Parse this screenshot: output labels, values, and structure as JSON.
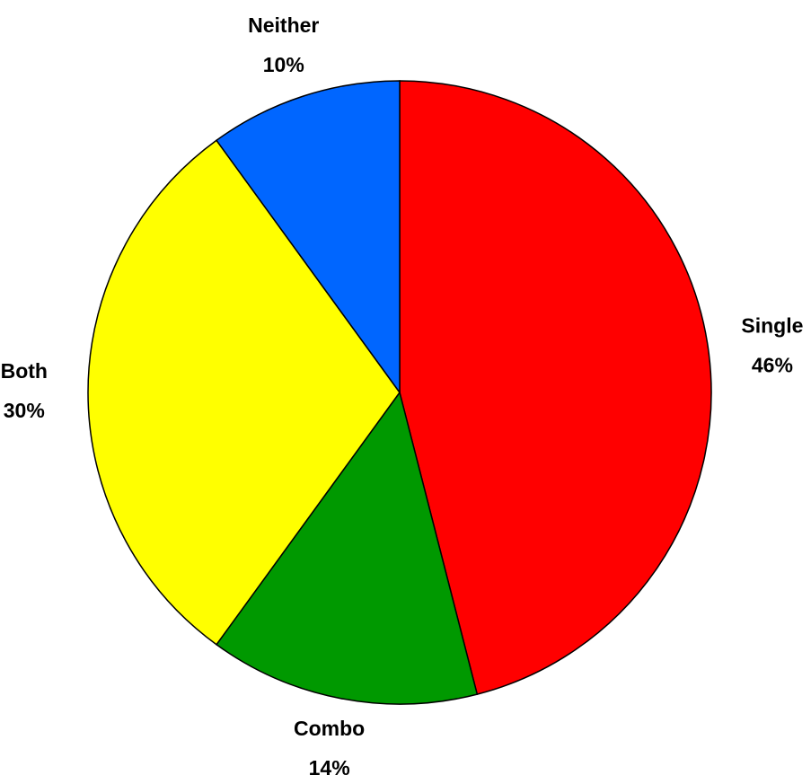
{
  "chart_data": {
    "type": "pie",
    "categories": [
      "Single",
      "Combo",
      "Both",
      "Neither"
    ],
    "values": [
      46,
      14,
      30,
      10
    ],
    "value_labels": [
      "46%",
      "14%",
      "30%",
      "10%"
    ],
    "colors": [
      "#ff0000",
      "#009900",
      "#ffff00",
      "#0066ff"
    ]
  }
}
